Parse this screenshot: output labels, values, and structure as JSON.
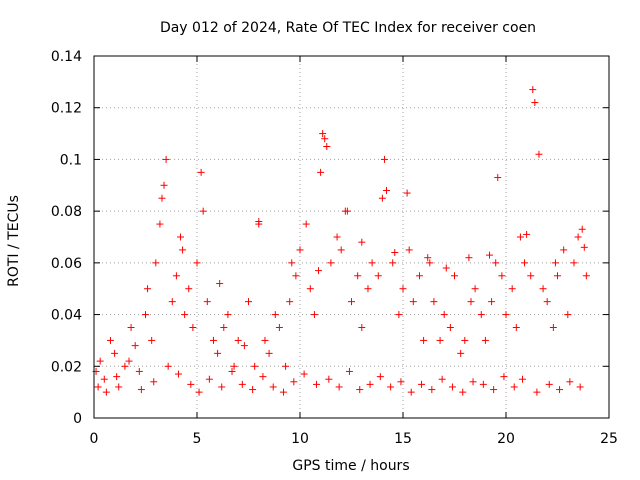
{
  "chart_data": {
    "type": "scatter",
    "title": "Day 012 of 2024, Rate Of TEC Index for receiver coen",
    "xlabel": "GPS time / hours",
    "ylabel": "ROTI / TECUs",
    "xlim": [
      0,
      25
    ],
    "ylim": [
      0,
      0.14
    ],
    "xticks": [
      0,
      5,
      10,
      15,
      20,
      25
    ],
    "xtick_labels": [
      "0",
      "5",
      "10",
      "15",
      "20",
      "25"
    ],
    "yticks": [
      0,
      0.02,
      0.04,
      0.06,
      0.08,
      0.1,
      0.12,
      0.14
    ],
    "ytick_labels": [
      "0",
      "0.02",
      "0.04",
      "0.06",
      "0.08",
      "0.1",
      "0.12",
      "0.14"
    ],
    "grid": true,
    "marker": "+",
    "color": "#ff0000",
    "series": [
      {
        "name": "ROTI",
        "x": [
          0.1,
          0.3,
          0.5,
          0.8,
          1.0,
          1.2,
          1.5,
          1.8,
          2.0,
          2.2,
          2.5,
          2.8,
          3.0,
          3.2,
          3.3,
          3.4,
          3.5,
          3.8,
          4.0,
          4.2,
          4.4,
          4.6,
          4.8,
          5.0,
          5.2,
          5.3,
          5.5,
          5.8,
          6.0,
          6.3,
          6.5,
          6.8,
          7.0,
          7.3,
          7.5,
          7.8,
          8.0,
          8.3,
          8.5,
          8.8,
          9.0,
          9.3,
          9.5,
          9.8,
          10.0,
          10.3,
          10.5,
          10.7,
          11.0,
          11.1,
          11.2,
          11.3,
          11.5,
          11.8,
          12.0,
          12.2,
          12.5,
          12.8,
          13.0,
          13.3,
          13.5,
          13.8,
          14.0,
          14.1,
          14.2,
          14.5,
          14.8,
          15.0,
          15.2,
          15.3,
          15.5,
          15.8,
          16.0,
          16.3,
          16.5,
          16.8,
          17.0,
          17.3,
          17.5,
          17.8,
          18.0,
          18.3,
          18.5,
          18.8,
          19.0,
          19.3,
          19.5,
          19.6,
          19.8,
          20.0,
          20.3,
          20.5,
          20.7,
          20.9,
          21.2,
          21.3,
          21.4,
          21.6,
          21.8,
          22.0,
          22.3,
          22.5,
          22.8,
          23.0,
          23.3,
          23.5,
          23.7,
          23.9,
          0.2,
          0.6,
          1.1,
          1.7,
          2.3,
          2.9,
          3.6,
          4.1,
          4.7,
          5.1,
          5.6,
          6.2,
          6.7,
          7.2,
          7.7,
          8.2,
          8.7,
          9.2,
          9.7,
          10.2,
          10.8,
          11.4,
          11.9,
          12.4,
          12.9,
          13.4,
          13.9,
          14.4,
          14.9,
          15.4,
          15.9,
          16.4,
          16.9,
          17.4,
          17.9,
          18.4,
          18.9,
          19.4,
          19.9,
          20.4,
          20.8,
          21.5,
          22.1,
          22.6,
          23.1,
          23.6,
          8.0,
          12.3,
          13.0,
          16.2,
          17.1,
          19.2,
          22.4,
          2.6,
          4.3,
          6.1,
          9.6,
          10.9,
          14.6,
          18.2,
          21.0,
          23.8
        ],
        "y": [
          0.018,
          0.022,
          0.015,
          0.03,
          0.025,
          0.012,
          0.02,
          0.035,
          0.028,
          0.018,
          0.04,
          0.03,
          0.06,
          0.075,
          0.085,
          0.09,
          0.1,
          0.045,
          0.055,
          0.07,
          0.04,
          0.05,
          0.035,
          0.06,
          0.095,
          0.08,
          0.045,
          0.03,
          0.025,
          0.035,
          0.04,
          0.02,
          0.03,
          0.028,
          0.045,
          0.02,
          0.075,
          0.03,
          0.025,
          0.04,
          0.035,
          0.02,
          0.045,
          0.055,
          0.065,
          0.075,
          0.05,
          0.04,
          0.095,
          0.11,
          0.108,
          0.105,
          0.06,
          0.07,
          0.065,
          0.08,
          0.045,
          0.055,
          0.035,
          0.05,
          0.06,
          0.055,
          0.085,
          0.1,
          0.088,
          0.06,
          0.04,
          0.05,
          0.087,
          0.065,
          0.045,
          0.055,
          0.03,
          0.06,
          0.045,
          0.03,
          0.04,
          0.035,
          0.055,
          0.025,
          0.03,
          0.045,
          0.05,
          0.04,
          0.03,
          0.045,
          0.06,
          0.093,
          0.055,
          0.04,
          0.05,
          0.035,
          0.07,
          0.06,
          0.055,
          0.127,
          0.122,
          0.102,
          0.05,
          0.045,
          0.035,
          0.055,
          0.065,
          0.04,
          0.06,
          0.07,
          0.073,
          0.055,
          0.012,
          0.01,
          0.016,
          0.022,
          0.011,
          0.014,
          0.02,
          0.017,
          0.013,
          0.01,
          0.015,
          0.012,
          0.018,
          0.013,
          0.011,
          0.016,
          0.012,
          0.01,
          0.014,
          0.017,
          0.013,
          0.015,
          0.012,
          0.018,
          0.011,
          0.013,
          0.016,
          0.012,
          0.014,
          0.01,
          0.013,
          0.011,
          0.015,
          0.012,
          0.01,
          0.014,
          0.013,
          0.011,
          0.016,
          0.012,
          0.015,
          0.01,
          0.013,
          0.011,
          0.014,
          0.012,
          0.076,
          0.08,
          0.068,
          0.062,
          0.058,
          0.063,
          0.06,
          0.05,
          0.065,
          0.052,
          0.06,
          0.057,
          0.064,
          0.062,
          0.071,
          0.066
        ]
      }
    ]
  }
}
